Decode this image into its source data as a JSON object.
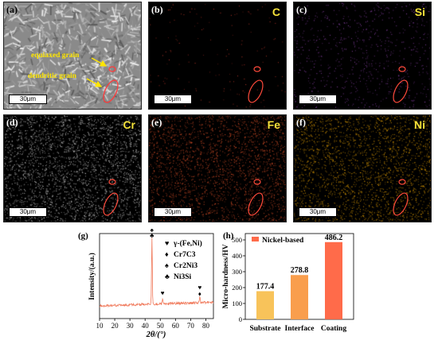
{
  "panels": {
    "a": {
      "label": "(a)",
      "scale": "30μm",
      "annotations": {
        "equiaxed": "equiaxed grain",
        "dendritic": "dendritic grain"
      }
    },
    "b": {
      "label": "(b)",
      "element": "C",
      "scale": "30μm",
      "dot_color": "#c0392b"
    },
    "c": {
      "label": "(c)",
      "element": "Si",
      "scale": "30μm",
      "dot_color": "#8e44ad"
    },
    "d": {
      "label": "(d)",
      "element": "Cr",
      "scale": "30μm",
      "dot_color": "#d8d8d8"
    },
    "e": {
      "label": "(e)",
      "element": "Fe",
      "scale": "30μm",
      "dot_color": "#e0522a"
    },
    "f": {
      "label": "(f)",
      "element": "Ni",
      "scale": "30μm",
      "dot_color": "#e8a300"
    }
  },
  "chart_data": [
    {
      "panel": "(g)",
      "type": "line",
      "ylabel": "Intensity/(a.u.)",
      "xlabel": "2θ/(°)",
      "xlim": [
        10,
        85
      ],
      "xticks": [
        10,
        20,
        30,
        40,
        50,
        60,
        70,
        80
      ],
      "peaks": [
        {
          "x": 44.5,
          "rel": 1.0
        },
        {
          "x": 51.5,
          "rel": 0.09
        },
        {
          "x": 76.0,
          "rel": 0.1
        }
      ],
      "legend": [
        {
          "symbol": "♥",
          "label": "γ-(Fe,Ni)"
        },
        {
          "symbol": "♦",
          "label": "Cr7C3"
        },
        {
          "symbol": "♠",
          "label": "Cr2Ni3"
        },
        {
          "symbol": "♣",
          "label": "Ni3Si"
        }
      ],
      "line_color": "#f07a5c"
    },
    {
      "panel": "(h)",
      "type": "bar",
      "ylabel": "Micro-hardness/HV",
      "categories": [
        "Substrate",
        "Interface",
        "Coating"
      ],
      "values": [
        177.4,
        278.8,
        486.2
      ],
      "value_labels": [
        "177.4",
        "278.8",
        "486.2"
      ],
      "ylim": [
        0,
        500
      ],
      "yticks": [
        0,
        100,
        200,
        300,
        400,
        500
      ],
      "legend": "Nickel-based",
      "legend_color": "#ff6b4a",
      "colors": [
        "#f8c35a",
        "#f99e4d",
        "#ff6b4a"
      ]
    }
  ]
}
